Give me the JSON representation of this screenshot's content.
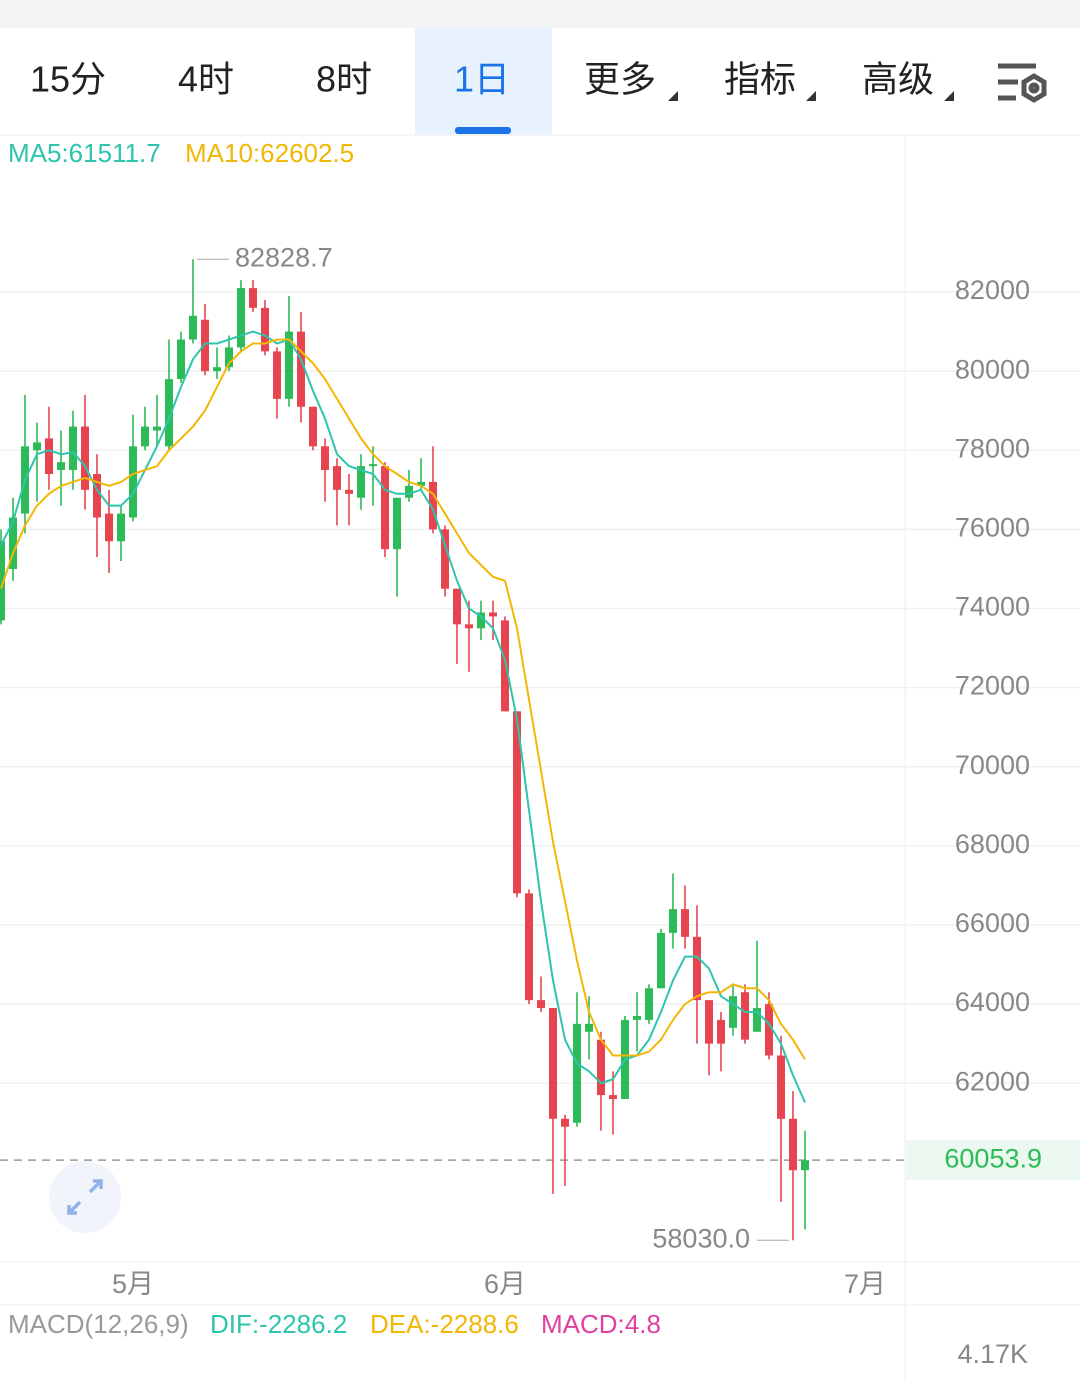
{
  "header": {
    "tabs": [
      "15分",
      "4时",
      "8时",
      "1日",
      "更多",
      "指标",
      "高级"
    ],
    "active_tab": 3
  },
  "chart_data": {
    "type": "candlestick",
    "categories": [
      null,
      null,
      null,
      null,
      null,
      null,
      null,
      null,
      null,
      null,
      null,
      "5月",
      null,
      null,
      null,
      null,
      null,
      null,
      null,
      null,
      null,
      null,
      null,
      null,
      null,
      null,
      null,
      null,
      null,
      null,
      null,
      null,
      null,
      null,
      null,
      null,
      null,
      null,
      null,
      null,
      null,
      null,
      "6月",
      null,
      null,
      null,
      null,
      null,
      null,
      null,
      null,
      null,
      null,
      null,
      null,
      null,
      null,
      null,
      null,
      null,
      null,
      null,
      null,
      null,
      null,
      null,
      null,
      null,
      null,
      null,
      null,
      null,
      "7月"
    ],
    "open": [
      73700,
      75000,
      76400,
      78000,
      78300,
      77500,
      77500,
      78600,
      77400,
      76400,
      75700,
      76300,
      78100,
      78500,
      78100,
      79800,
      80800,
      81300,
      80000,
      80100,
      80600,
      82100,
      81600,
      80500,
      79300,
      81000,
      79100,
      78100,
      77600,
      77000,
      76800,
      77600,
      77600,
      75500,
      76800,
      77100,
      77200,
      76000,
      74500,
      73600,
      73500,
      73900,
      73700,
      71400,
      66800,
      64100,
      63900,
      61100,
      61000,
      63300,
      63100,
      61700,
      61600,
      63600,
      63600,
      64400,
      65800,
      66400,
      65700,
      64100,
      63600,
      63400,
      64300,
      63300,
      64000,
      62700,
      61100,
      59800,
      null,
      null,
      null,
      null,
      null
    ],
    "high": [
      76000,
      76800,
      79400,
      78700,
      79100,
      78500,
      79000,
      79400,
      77900,
      77000,
      76600,
      78900,
      79100,
      79400,
      80800,
      81000,
      82828.7,
      81700,
      80600,
      80900,
      82300,
      82300,
      81800,
      80600,
      81900,
      81500,
      79100,
      78300,
      77800,
      77400,
      77900,
      78100,
      77700,
      76800,
      77500,
      77800,
      78100,
      76100,
      74500,
      74200,
      74200,
      74200,
      73800,
      71400,
      66900,
      64700,
      63900,
      61200,
      64300,
      64200,
      63300,
      62300,
      63700,
      64300,
      64500,
      65900,
      67300,
      67000,
      66500,
      64100,
      63800,
      64500,
      64500,
      65600,
      64300,
      63200,
      61800,
      60800,
      null,
      null,
      null,
      null,
      null
    ],
    "low": [
      73600,
      74700,
      75900,
      76700,
      77000,
      76600,
      77000,
      76500,
      75300,
      74900,
      75200,
      76200,
      78000,
      78100,
      78000,
      79700,
      80700,
      79900,
      79800,
      80000,
      80500,
      81500,
      80400,
      78800,
      79100,
      78700,
      78000,
      76700,
      76100,
      76100,
      76500,
      76600,
      75300,
      74300,
      76700,
      77000,
      75900,
      74300,
      72600,
      72400,
      73200,
      73200,
      71400,
      66700,
      64000,
      63800,
      59200,
      59400,
      60900,
      62600,
      60800,
      60700,
      61600,
      62800,
      63500,
      64400,
      65400,
      65400,
      63000,
      62200,
      62300,
      63200,
      63000,
      63300,
      62600,
      59000,
      58030,
      58300,
      null,
      null,
      null,
      null,
      null
    ],
    "close": [
      75700,
      76300,
      78100,
      78200,
      77400,
      77700,
      78600,
      77000,
      76300,
      75700,
      76400,
      78100,
      78600,
      78600,
      79800,
      80800,
      81400,
      80000,
      80100,
      80600,
      82100,
      81600,
      80500,
      79300,
      81000,
      79100,
      78100,
      77500,
      77000,
      76900,
      77600,
      77650,
      75500,
      76800,
      77100,
      77200,
      76000,
      74500,
      73600,
      73500,
      73900,
      73800,
      71400,
      66800,
      64100,
      63900,
      61100,
      60900,
      63500,
      63500,
      61700,
      61600,
      63600,
      63700,
      64400,
      65800,
      66400,
      65700,
      64100,
      63000,
      63000,
      64200,
      63100,
      63900,
      62700,
      61100,
      59800,
      60053.9,
      null,
      null,
      null,
      null,
      null
    ],
    "up_color": "#2dbb57",
    "down_color": "#e84450",
    "ma": [
      {
        "label": "MA5:61511.7",
        "color": "#2ec4ad",
        "values": [
          75600,
          76200,
          77250,
          77900,
          78000,
          77900,
          77950,
          77600,
          77000,
          76600,
          76600,
          76900,
          77500,
          78100,
          78800,
          79600,
          80300,
          80700,
          80700,
          80800,
          80900,
          81000,
          80900,
          80700,
          80800,
          80300,
          79500,
          78800,
          77900,
          77600,
          77500,
          77400,
          77000,
          76900,
          76900,
          77000,
          76500,
          75600,
          74700,
          74000,
          73800,
          73500,
          72700,
          71200,
          68900,
          66600,
          64600,
          63100,
          62500,
          62300,
          62000,
          62100,
          62600,
          62700,
          63100,
          63800,
          64600,
          65200,
          65200,
          64900,
          64200,
          64000,
          63800,
          63800,
          63500,
          63000,
          62200,
          61511.7,
          null,
          null,
          null,
          null,
          null
        ]
      },
      {
        "label": "MA10:62602.5",
        "color": "#f2b705",
        "values": [
          74500,
          75400,
          76100,
          76600,
          76900,
          77100,
          77200,
          77300,
          77200,
          77100,
          77200,
          77400,
          77500,
          77600,
          78000,
          78300,
          78600,
          79000,
          79600,
          80200,
          80500,
          80700,
          80700,
          80800,
          80800,
          80500,
          80200,
          79800,
          79300,
          78800,
          78300,
          77900,
          77600,
          77400,
          77200,
          77100,
          76900,
          76400,
          75900,
          75400,
          75100,
          74800,
          74700,
          73500,
          71700,
          69900,
          68100,
          66600,
          65100,
          63800,
          63100,
          62700,
          62700,
          62700,
          62800,
          63100,
          63600,
          64000,
          64200,
          64300,
          64300,
          64500,
          64400,
          64400,
          64100,
          63500,
          63100,
          62602.5,
          null,
          null,
          null,
          null,
          null
        ]
      }
    ],
    "ylim": [
      57480,
      85970
    ],
    "yticks": [
      62000,
      64000,
      66000,
      68000,
      70000,
      72000,
      74000,
      76000,
      78000,
      80000,
      82000
    ],
    "grid": true,
    "max_annotation": 82828.7,
    "min_annotation": {
      "value": 58030,
      "label": "58030.0"
    }
  },
  "macd_bar": {
    "title": "MACD(12,26,9)",
    "dif": "DIF:-2286.2",
    "dea": "DEA:-2288.6",
    "macd": "MACD:4.8",
    "axis_label": "4.17K"
  }
}
